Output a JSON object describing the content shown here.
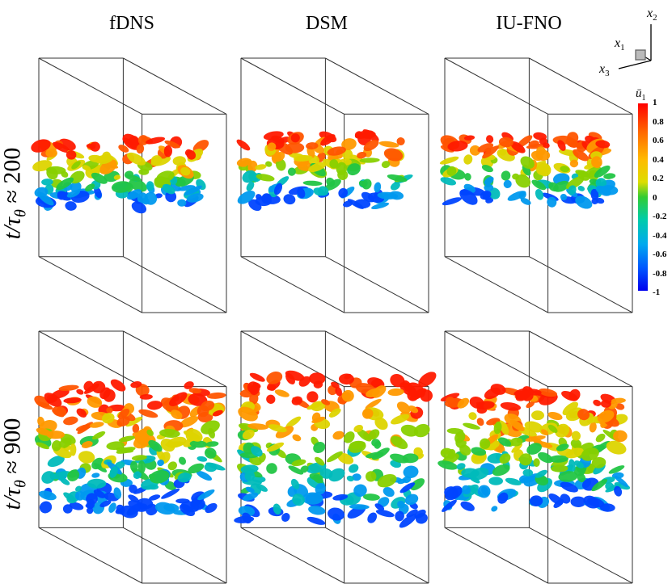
{
  "columns": [
    "fDNS",
    "DSM",
    "IU-FNO"
  ],
  "rows": [
    {
      "prefix": "t/τ",
      "sub": "θ",
      "suffix": " ≈ 200"
    },
    {
      "prefix": "t/τ",
      "sub": "θ",
      "suffix": " ≈ 900"
    }
  ],
  "colorbar": {
    "title": "ū",
    "title_sub": "1",
    "ticks": [
      "1",
      "0.8",
      "0.6",
      "0.4",
      "0.2",
      "0",
      "-0.2",
      "-0.4",
      "-0.6",
      "-0.8",
      "-1"
    ],
    "colors": [
      "#ff0000",
      "#ff6600",
      "#ffaa00",
      "#e6e600",
      "#99dd00",
      "#22cc22",
      "#00ccaa",
      "#00aadd",
      "#0066ff",
      "#0000ff"
    ]
  },
  "axes_triad": {
    "x1": "x",
    "x1_sub": "1",
    "x2": "x",
    "x2_sub": "2",
    "x3": "x",
    "x3_sub": "3"
  }
}
